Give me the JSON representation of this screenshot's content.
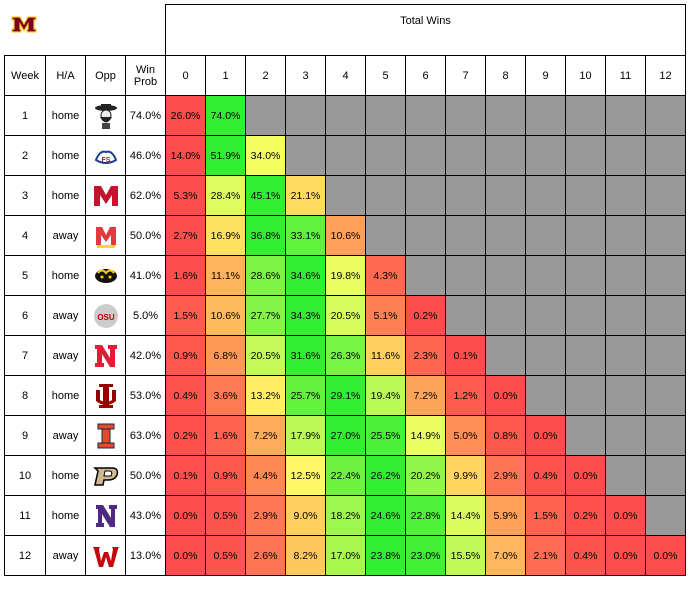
{
  "header": {
    "total_wins_title": "Total Wins",
    "week": "Week",
    "ha": "H/A",
    "opp": "Opp",
    "win_prob": "Win Prob",
    "wins": [
      "0",
      "1",
      "2",
      "3",
      "4",
      "5",
      "6",
      "7",
      "8",
      "9",
      "10",
      "11",
      "12"
    ]
  },
  "team_logo": "minnesota-m-logo",
  "games": [
    {
      "week": "1",
      "ha": "home",
      "opp_logo": "new-mexico-state-logo",
      "win_prob": "74.0%"
    },
    {
      "week": "2",
      "ha": "home",
      "opp_logo": "fresno-state-logo",
      "win_prob": "46.0%"
    },
    {
      "week": "3",
      "ha": "home",
      "opp_logo": "miami-ohio-logo",
      "win_prob": "62.0%"
    },
    {
      "week": "4",
      "ha": "away",
      "opp_logo": "maryland-logo",
      "win_prob": "50.0%"
    },
    {
      "week": "5",
      "ha": "home",
      "opp_logo": "iowa-logo",
      "win_prob": "41.0%"
    },
    {
      "week": "6",
      "ha": "away",
      "opp_logo": "ohio-state-logo",
      "win_prob": "5.0%"
    },
    {
      "week": "7",
      "ha": "away",
      "opp_logo": "nebraska-logo",
      "win_prob": "42.0%"
    },
    {
      "week": "8",
      "ha": "home",
      "opp_logo": "indiana-logo",
      "win_prob": "53.0%"
    },
    {
      "week": "9",
      "ha": "away",
      "opp_logo": "illinois-logo",
      "win_prob": "63.0%"
    },
    {
      "week": "10",
      "ha": "home",
      "opp_logo": "purdue-logo",
      "win_prob": "50.0%"
    },
    {
      "week": "11",
      "ha": "home",
      "opp_logo": "northwestern-logo",
      "win_prob": "43.0%"
    },
    {
      "week": "12",
      "ha": "away",
      "opp_logo": "wisconsin-logo",
      "win_prob": "13.0%"
    }
  ],
  "chart_data": {
    "type": "heatmap",
    "title": "Total Wins",
    "x": [
      0,
      1,
      2,
      3,
      4,
      5,
      6,
      7,
      8,
      9,
      10,
      11,
      12
    ],
    "y": [
      "1",
      "2",
      "3",
      "4",
      "5",
      "6",
      "7",
      "8",
      "9",
      "10",
      "11",
      "12"
    ],
    "values": [
      [
        "26.0%",
        "74.0%"
      ],
      [
        "14.0%",
        "51.9%",
        "34.0%"
      ],
      [
        "5.3%",
        "28.4%",
        "45.1%",
        "21.1%"
      ],
      [
        "2.7%",
        "16.9%",
        "36.8%",
        "33.1%",
        "10.6%"
      ],
      [
        "1.6%",
        "11.1%",
        "28.6%",
        "34.6%",
        "19.8%",
        "4.3%"
      ],
      [
        "1.5%",
        "10.6%",
        "27.7%",
        "34.3%",
        "20.5%",
        "5.1%",
        "0.2%"
      ],
      [
        "0.9%",
        "6.8%",
        "20.5%",
        "31.6%",
        "26.3%",
        "11.6%",
        "2.3%",
        "0.1%"
      ],
      [
        "0.4%",
        "3.6%",
        "13.2%",
        "25.7%",
        "29.1%",
        "19.4%",
        "7.2%",
        "1.2%",
        "0.0%"
      ],
      [
        "0.2%",
        "1.6%",
        "7.2%",
        "17.9%",
        "27.0%",
        "25.5%",
        "14.9%",
        "5.0%",
        "0.8%",
        "0.0%"
      ],
      [
        "0.1%",
        "0.9%",
        "4.4%",
        "12.5%",
        "22.4%",
        "26.2%",
        "20.2%",
        "9.9%",
        "2.9%",
        "0.4%",
        "0.0%"
      ],
      [
        "0.0%",
        "0.5%",
        "2.9%",
        "9.0%",
        "18.2%",
        "24.6%",
        "22.8%",
        "14.4%",
        "5.9%",
        "1.5%",
        "0.2%",
        "0.0%"
      ],
      [
        "0.0%",
        "0.5%",
        "2.6%",
        "8.2%",
        "17.0%",
        "23.8%",
        "23.0%",
        "15.5%",
        "7.0%",
        "2.1%",
        "0.4%",
        "0.0%",
        "0.0%"
      ]
    ],
    "unavailable_color": "#999999",
    "colors": {
      "low": "#ff4d4d",
      "mid": "#ffff66",
      "high": "#33ee33"
    }
  }
}
